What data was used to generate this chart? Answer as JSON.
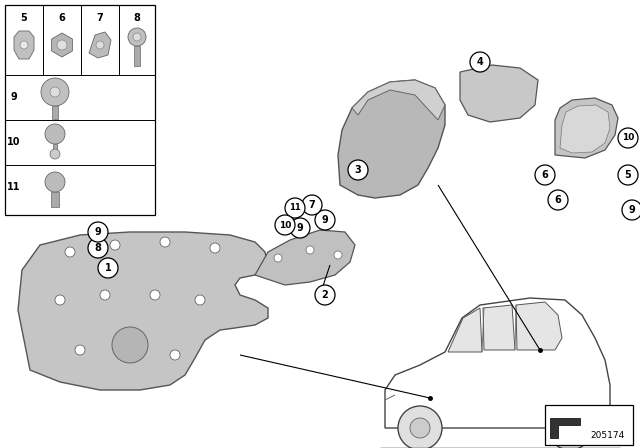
{
  "bg_color": "#ffffff",
  "part_number": "205174",
  "fig_width": 6.4,
  "fig_height": 4.48,
  "dpi": 100
}
